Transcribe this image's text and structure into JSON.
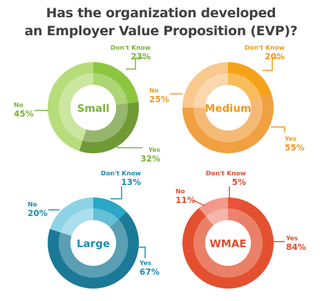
{
  "title_lines": [
    "Has the organization developed",
    "an Employer Value Proposition (EVP)?"
  ],
  "chart_data": [
    {
      "type": "pie",
      "center_label": "Small",
      "slices": [
        {
          "label": "Don't Know",
          "value": 23,
          "value_label": "23%"
        },
        {
          "label": "Yes",
          "value": 32,
          "value_label": "32%"
        },
        {
          "label": "No",
          "value": 45,
          "value_label": "45%"
        }
      ],
      "colors": {
        "Don't Know": "#8cc63f",
        "Yes": "#6f9a35",
        "No": "#b6dd7a",
        "inner": "#cfea9f",
        "text": "#7ab33a"
      }
    },
    {
      "type": "pie",
      "center_label": "Medium",
      "slices": [
        {
          "label": "Don't Know",
          "value": 20,
          "value_label": "20%"
        },
        {
          "label": "Yes",
          "value": 55,
          "value_label": "55%"
        },
        {
          "label": "No",
          "value": 25,
          "value_label": "25%"
        }
      ],
      "colors": {
        "Don't Know": "#f7a21b",
        "Yes": "#f0a040",
        "No": "#f9c88c",
        "inner": "#fad8aa",
        "text": "#f29a1e"
      }
    },
    {
      "type": "pie",
      "center_label": "Large",
      "slices": [
        {
          "label": "Don't Know",
          "value": 13,
          "value_label": "13%"
        },
        {
          "label": "Yes",
          "value": 67,
          "value_label": "67%"
        },
        {
          "label": "No",
          "value": 20,
          "value_label": "20%"
        }
      ],
      "colors": {
        "Don't Know": "#2aa7c5",
        "Yes": "#1b7a98",
        "No": "#8dd3e6",
        "inner": "#b7e3ee",
        "text": "#1a8db3"
      }
    },
    {
      "type": "pie",
      "center_label": "WMAE",
      "slices": [
        {
          "label": "Don't Know",
          "value": 5,
          "value_label": "5%"
        },
        {
          "label": "Yes",
          "value": 84,
          "value_label": "84%"
        },
        {
          "label": "No",
          "value": 11,
          "value_label": "11%"
        }
      ],
      "colors": {
        "Don't Know": "#e8533a",
        "Yes": "#e3502f",
        "No": "#f2998a",
        "inner": "#f4b5a6",
        "text": "#e04e2f"
      }
    }
  ]
}
